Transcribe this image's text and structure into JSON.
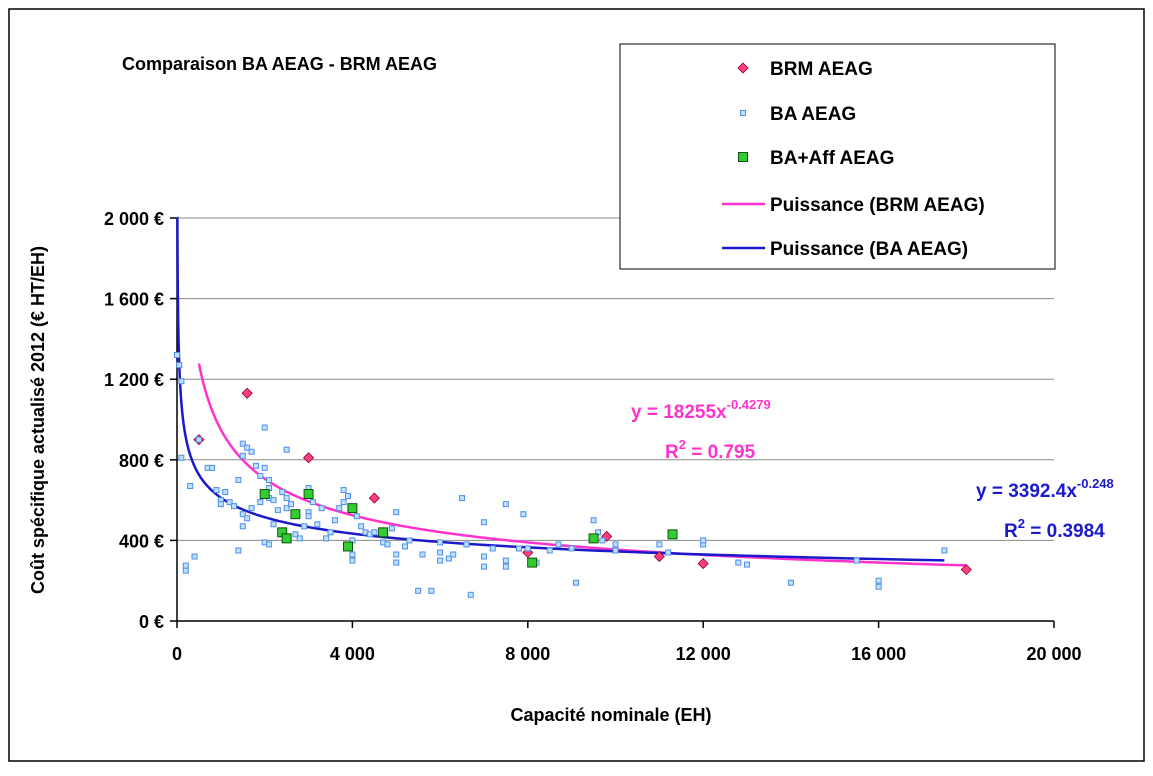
{
  "chart_data": {
    "type": "scatter",
    "title": "Comparaison BA AEAG - BRM AEAG",
    "xlabel": "Capacité nominale (EH)",
    "ylabel": "Coût spécifique actualisé 2012 (€ HT/EH)",
    "xlim": [
      0,
      20000
    ],
    "ylim": [
      0,
      2000
    ],
    "x_ticks": [
      0,
      4000,
      8000,
      12000,
      16000,
      20000
    ],
    "x_tick_labels": [
      "0",
      "4 000",
      "8 000",
      "12 000",
      "16 000",
      "20 000"
    ],
    "y_ticks": [
      0,
      400,
      800,
      1200,
      1600,
      2000
    ],
    "y_tick_labels": [
      "0 €",
      "400 €",
      "800 €",
      "1 200 €",
      "1 600 €",
      "2 000 €"
    ],
    "grid": "horizontal",
    "legend_position": "top-right",
    "series": [
      {
        "name": "BRM AEAG",
        "kind": "scatter",
        "marker": "diamond",
        "color": "#ff3d7f",
        "points": [
          [
            500,
            900
          ],
          [
            1600,
            1130
          ],
          [
            3000,
            810
          ],
          [
            4500,
            610
          ],
          [
            8000,
            340
          ],
          [
            9800,
            420
          ],
          [
            11000,
            320
          ],
          [
            12000,
            285
          ],
          [
            18000,
            255
          ]
        ]
      },
      {
        "name": "BA AEAG",
        "kind": "scatter",
        "marker": "square",
        "color": "#4f8fe8",
        "points": [
          [
            0,
            1320
          ],
          [
            50,
            1270
          ],
          [
            100,
            810
          ],
          [
            100,
            1190
          ],
          [
            200,
            250
          ],
          [
            200,
            275
          ],
          [
            300,
            670
          ],
          [
            400,
            320
          ],
          [
            500,
            900
          ],
          [
            700,
            760
          ],
          [
            800,
            760
          ],
          [
            900,
            650
          ],
          [
            1000,
            600
          ],
          [
            1000,
            580
          ],
          [
            1100,
            640
          ],
          [
            1200,
            590
          ],
          [
            1300,
            570
          ],
          [
            1400,
            700
          ],
          [
            1400,
            350
          ],
          [
            1500,
            880
          ],
          [
            1500,
            820
          ],
          [
            1600,
            860
          ],
          [
            1700,
            840
          ],
          [
            1500,
            530
          ],
          [
            1600,
            510
          ],
          [
            1500,
            470
          ],
          [
            1700,
            560
          ],
          [
            1800,
            770
          ],
          [
            1900,
            720
          ],
          [
            1900,
            590
          ],
          [
            2000,
            760
          ],
          [
            2000,
            960
          ],
          [
            2100,
            700
          ],
          [
            2100,
            660
          ],
          [
            2100,
            610
          ],
          [
            2200,
            600
          ],
          [
            2000,
            390
          ],
          [
            2100,
            380
          ],
          [
            2200,
            480
          ],
          [
            2300,
            550
          ],
          [
            2400,
            640
          ],
          [
            2500,
            850
          ],
          [
            2500,
            610
          ],
          [
            2500,
            560
          ],
          [
            2600,
            580
          ],
          [
            2700,
            530
          ],
          [
            2700,
            430
          ],
          [
            2800,
            410
          ],
          [
            2900,
            470
          ],
          [
            3000,
            660
          ],
          [
            3000,
            540
          ],
          [
            3000,
            520
          ],
          [
            3100,
            590
          ],
          [
            3200,
            480
          ],
          [
            3300,
            560
          ],
          [
            3400,
            410
          ],
          [
            3500,
            440
          ],
          [
            3600,
            500
          ],
          [
            3700,
            560
          ],
          [
            3800,
            590
          ],
          [
            3800,
            650
          ],
          [
            3900,
            620
          ],
          [
            4000,
            300
          ],
          [
            4000,
            330
          ],
          [
            4000,
            400
          ],
          [
            4100,
            520
          ],
          [
            4200,
            470
          ],
          [
            4300,
            440
          ],
          [
            4400,
            430
          ],
          [
            4500,
            440
          ],
          [
            4700,
            390
          ],
          [
            4800,
            380
          ],
          [
            4900,
            460
          ],
          [
            5000,
            290
          ],
          [
            5000,
            330
          ],
          [
            5000,
            540
          ],
          [
            5200,
            370
          ],
          [
            5300,
            400
          ],
          [
            5500,
            150
          ],
          [
            5600,
            330
          ],
          [
            5800,
            150
          ],
          [
            6000,
            340
          ],
          [
            6000,
            300
          ],
          [
            6000,
            390
          ],
          [
            6200,
            310
          ],
          [
            6300,
            330
          ],
          [
            6500,
            610
          ],
          [
            6600,
            380
          ],
          [
            6700,
            130
          ],
          [
            7000,
            490
          ],
          [
            7000,
            270
          ],
          [
            7000,
            320
          ],
          [
            7200,
            360
          ],
          [
            7500,
            580
          ],
          [
            7500,
            270
          ],
          [
            7500,
            300
          ],
          [
            7800,
            360
          ],
          [
            7900,
            530
          ],
          [
            8000,
            360
          ],
          [
            8200,
            290
          ],
          [
            8500,
            350
          ],
          [
            8700,
            380
          ],
          [
            9000,
            360
          ],
          [
            9100,
            190
          ],
          [
            9500,
            500
          ],
          [
            9600,
            440
          ],
          [
            9700,
            400
          ],
          [
            10000,
            380
          ],
          [
            10000,
            350
          ],
          [
            11000,
            380
          ],
          [
            11200,
            340
          ],
          [
            12000,
            380
          ],
          [
            12000,
            400
          ],
          [
            12800,
            290
          ],
          [
            13000,
            280
          ],
          [
            14000,
            190
          ],
          [
            15500,
            300
          ],
          [
            16000,
            200
          ],
          [
            16000,
            170
          ],
          [
            17500,
            350
          ]
        ]
      },
      {
        "name": "BA+Aff AEAG",
        "kind": "scatter",
        "marker": "square",
        "color": "#33cc33",
        "points": [
          [
            2000,
            630
          ],
          [
            2400,
            440
          ],
          [
            2500,
            410
          ],
          [
            2700,
            530
          ],
          [
            3000,
            630
          ],
          [
            3900,
            370
          ],
          [
            4000,
            560
          ],
          [
            4700,
            440
          ],
          [
            8100,
            290
          ],
          [
            9500,
            410
          ],
          [
            11300,
            430
          ]
        ]
      },
      {
        "name": "Puissance (BRM AEAG)",
        "kind": "trendline",
        "color": "#ff33cc",
        "model": {
          "form": "power",
          "a": 18255,
          "b": -0.4279
        },
        "domain": [
          500,
          18000
        ]
      },
      {
        "name": "Puissance (BA AEAG)",
        "kind": "trendline",
        "color": "#1a1acc",
        "model": {
          "form": "power",
          "a": 3392.4,
          "b": -0.248
        },
        "domain": [
          5,
          17500
        ]
      }
    ],
    "annotations": [
      {
        "id": "brm-eq",
        "prefix": "y = 18255x",
        "exponent": "-0.4279",
        "r2_prefix": "R",
        "r2_sup": "2",
        "r2_value": " = 0.795",
        "color": "#ff33cc"
      },
      {
        "id": "ba-eq",
        "prefix": "y = 3392.4x",
        "exponent": "-0.248",
        "r2_prefix": "R",
        "r2_sup": "2",
        "r2_value": " = 0.3984",
        "color": "#1a1acc"
      }
    ]
  }
}
